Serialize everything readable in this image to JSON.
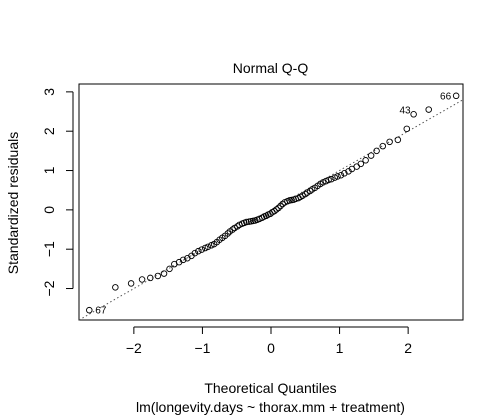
{
  "chart_data": {
    "type": "scatter",
    "title": "Normal Q-Q",
    "xlabel": "Theoretical Quantiles",
    "subtitle": "lm(longevity.days ~ thorax.mm + treatment)",
    "ylabel": "Standardized residuals",
    "xlim": [
      -2.8,
      2.8
    ],
    "ylim": [
      -2.8,
      3.2
    ],
    "xticks": [
      -2,
      -1,
      0,
      1,
      2
    ],
    "yticks": [
      -2,
      -1,
      0,
      1,
      2,
      3
    ],
    "grid": false,
    "reference_line": {
      "type": "dotted",
      "intercept": 0.0,
      "slope": 1.0,
      "color": "#555555"
    },
    "points": [
      {
        "x": -2.65,
        "y": -2.55
      },
      {
        "x": -2.27,
        "y": -1.97
      },
      {
        "x": -2.04,
        "y": -1.87
      },
      {
        "x": -1.88,
        "y": -1.77
      },
      {
        "x": -1.76,
        "y": -1.73
      },
      {
        "x": -1.65,
        "y": -1.68
      },
      {
        "x": -1.56,
        "y": -1.62
      },
      {
        "x": -1.48,
        "y": -1.5
      },
      {
        "x": -1.41,
        "y": -1.38
      },
      {
        "x": -1.34,
        "y": -1.33
      },
      {
        "x": -1.28,
        "y": -1.27
      },
      {
        "x": -1.22,
        "y": -1.23
      },
      {
        "x": -1.16,
        "y": -1.17
      },
      {
        "x": -1.11,
        "y": -1.1
      },
      {
        "x": -1.06,
        "y": -1.05
      },
      {
        "x": -1.01,
        "y": -1.01
      },
      {
        "x": -0.96,
        "y": -0.97
      },
      {
        "x": -0.92,
        "y": -0.94
      },
      {
        "x": -0.87,
        "y": -0.9
      },
      {
        "x": -0.83,
        "y": -0.87
      },
      {
        "x": -0.79,
        "y": -0.82
      },
      {
        "x": -0.75,
        "y": -0.76
      },
      {
        "x": -0.71,
        "y": -0.71
      },
      {
        "x": -0.67,
        "y": -0.66
      },
      {
        "x": -0.63,
        "y": -0.6
      },
      {
        "x": -0.6,
        "y": -0.55
      },
      {
        "x": -0.56,
        "y": -0.5
      },
      {
        "x": -0.53,
        "y": -0.46
      },
      {
        "x": -0.49,
        "y": -0.42
      },
      {
        "x": -0.46,
        "y": -0.38
      },
      {
        "x": -0.42,
        "y": -0.35
      },
      {
        "x": -0.39,
        "y": -0.33
      },
      {
        "x": -0.36,
        "y": -0.31
      },
      {
        "x": -0.32,
        "y": -0.3
      },
      {
        "x": -0.29,
        "y": -0.29
      },
      {
        "x": -0.26,
        "y": -0.28
      },
      {
        "x": -0.23,
        "y": -0.27
      },
      {
        "x": -0.2,
        "y": -0.25
      },
      {
        "x": -0.17,
        "y": -0.23
      },
      {
        "x": -0.13,
        "y": -0.2
      },
      {
        "x": -0.1,
        "y": -0.17
      },
      {
        "x": -0.07,
        "y": -0.15
      },
      {
        "x": -0.04,
        "y": -0.12
      },
      {
        "x": -0.01,
        "y": -0.1
      },
      {
        "x": 0.02,
        "y": -0.06
      },
      {
        "x": 0.05,
        "y": -0.03
      },
      {
        "x": 0.08,
        "y": 0.01
      },
      {
        "x": 0.11,
        "y": 0.05
      },
      {
        "x": 0.14,
        "y": 0.1
      },
      {
        "x": 0.17,
        "y": 0.15
      },
      {
        "x": 0.2,
        "y": 0.19
      },
      {
        "x": 0.24,
        "y": 0.22
      },
      {
        "x": 0.27,
        "y": 0.24
      },
      {
        "x": 0.3,
        "y": 0.25
      },
      {
        "x": 0.33,
        "y": 0.26
      },
      {
        "x": 0.36,
        "y": 0.28
      },
      {
        "x": 0.4,
        "y": 0.3
      },
      {
        "x": 0.43,
        "y": 0.33
      },
      {
        "x": 0.46,
        "y": 0.36
      },
      {
        "x": 0.5,
        "y": 0.4
      },
      {
        "x": 0.53,
        "y": 0.44
      },
      {
        "x": 0.57,
        "y": 0.48
      },
      {
        "x": 0.6,
        "y": 0.52
      },
      {
        "x": 0.64,
        "y": 0.56
      },
      {
        "x": 0.68,
        "y": 0.61
      },
      {
        "x": 0.72,
        "y": 0.66
      },
      {
        "x": 0.76,
        "y": 0.7
      },
      {
        "x": 0.8,
        "y": 0.73
      },
      {
        "x": 0.84,
        "y": 0.76
      },
      {
        "x": 0.88,
        "y": 0.78
      },
      {
        "x": 0.93,
        "y": 0.82
      },
      {
        "x": 0.97,
        "y": 0.85
      },
      {
        "x": 1.02,
        "y": 0.88
      },
      {
        "x": 1.07,
        "y": 0.93
      },
      {
        "x": 1.13,
        "y": 0.98
      },
      {
        "x": 1.18,
        "y": 1.04
      },
      {
        "x": 1.25,
        "y": 1.1
      },
      {
        "x": 1.31,
        "y": 1.17
      },
      {
        "x": 1.38,
        "y": 1.26
      },
      {
        "x": 1.46,
        "y": 1.38
      },
      {
        "x": 1.54,
        "y": 1.5
      },
      {
        "x": 1.63,
        "y": 1.62
      },
      {
        "x": 1.73,
        "y": 1.73
      },
      {
        "x": 1.85,
        "y": 1.78
      },
      {
        "x": 1.98,
        "y": 2.06
      },
      {
        "x": 2.08,
        "y": 2.43
      },
      {
        "x": 2.3,
        "y": 2.55
      },
      {
        "x": 2.7,
        "y": 2.9
      }
    ],
    "point_labels": [
      {
        "text": "67",
        "x": -2.65,
        "y": -2.55,
        "side": "right"
      },
      {
        "text": "43",
        "x": 2.08,
        "y": 2.43,
        "side": "left-above"
      },
      {
        "text": "66",
        "x": 2.7,
        "y": 2.9,
        "side": "left"
      }
    ]
  }
}
